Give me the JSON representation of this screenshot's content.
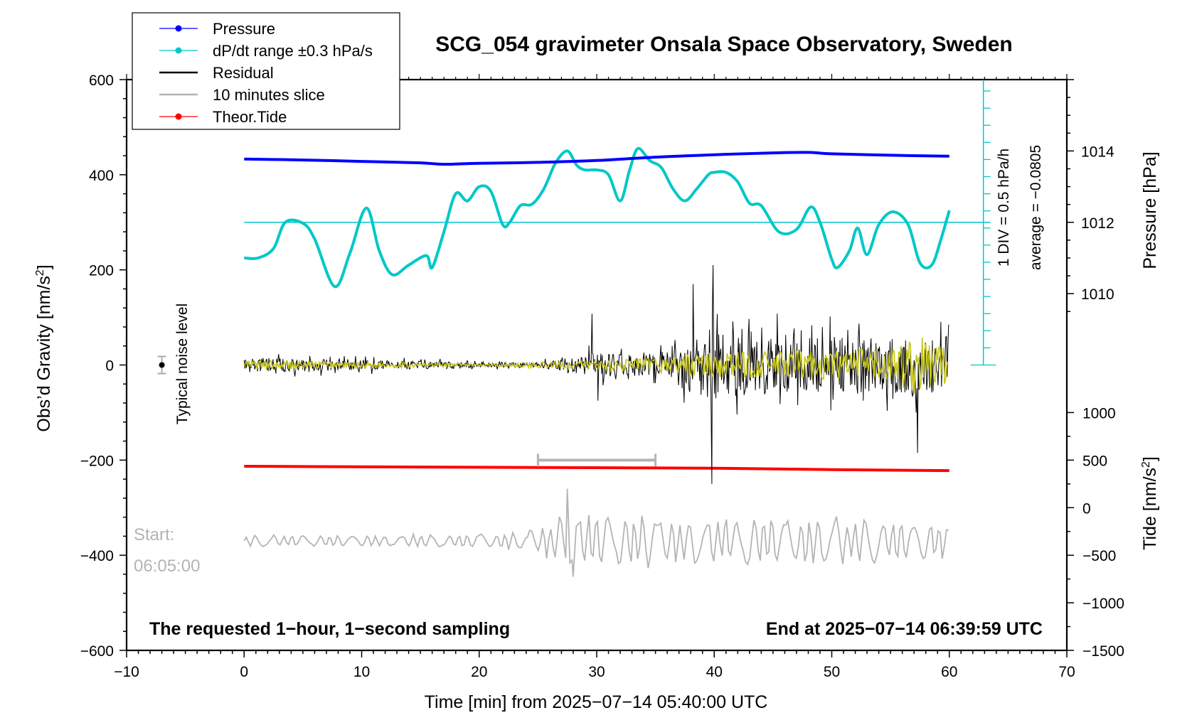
{
  "chart_data": {
    "type": "line",
    "title": "SCG_054 gravimeter Onsala Space Observatory, Sweden",
    "xlabel": "Time [min] from 2025−07−14 05:40:00 UTC",
    "ylabel": "Obs’d Gravity [nm/s",
    "ylabel_sup": "2",
    "ylabel_close": "]",
    "xlim": [
      -10,
      70
    ],
    "ylim": [
      -600,
      600
    ],
    "x_ticks": [
      -10,
      0,
      10,
      20,
      30,
      40,
      50,
      60,
      70
    ],
    "x_tick_labels": [
      "−10",
      "0",
      "10",
      "20",
      "30",
      "40",
      "50",
      "60",
      "70"
    ],
    "y_ticks": [
      -600,
      -400,
      -200,
      0,
      200,
      400,
      600
    ],
    "y_tick_labels": [
      "−600",
      "−400",
      "−200",
      "0",
      "200",
      "400",
      "600"
    ],
    "pressure_axis": {
      "label": "Pressure [hPa]",
      "ticks": [
        1010,
        1012,
        1014
      ],
      "tick_labels": [
        "1010",
        "1012",
        "1014"
      ],
      "gravity_at_1010": 150,
      "gravity_per_hPa": 75
    },
    "tide_axis": {
      "label": "Tide [nm/s",
      "label_sup": "2",
      "label_close": "]",
      "ticks": [
        -1500,
        -1000,
        -500,
        0,
        500,
        1000
      ],
      "tick_labels": [
        "−1500",
        "−1000",
        "−500",
        "0",
        "500",
        "1000"
      ],
      "gravity_at_0": -300,
      "gravity_per_unit": 0.2
    },
    "dpdt_scale": {
      "label_div": "1 DIV = 0.5 hPa/h",
      "label_avg": "average = −0.0805",
      "baseline_gravity": 300,
      "ticks_min_gravity": 0,
      "ticks_max_gravity": 600,
      "ticks_step_gravity": 36,
      "x_minutes": 62.9
    },
    "noise_level": {
      "label": "Typical noise level",
      "x": -7,
      "y": 0,
      "err": 18
    },
    "slice_bar": {
      "x_start": 25,
      "x_end": 35,
      "y": -200
    },
    "slice_start_label": "Start:",
    "slice_start_time": "06:05:00",
    "footer_left": "The requested 1−hour, 1−second sampling",
    "footer_right": "End at 2025−07−14 06:39:59 UTC",
    "legend": [
      {
        "label": "Pressure",
        "color": "#0000ff",
        "marker": true
      },
      {
        "label": "dP/dt range ±0.3 hPa/s",
        "color": "#00c8c8",
        "marker": true
      },
      {
        "label": "Residual",
        "color": "#000000",
        "marker": false
      },
      {
        "label": "10 minutes slice",
        "color": "#b4b4b4",
        "marker": false
      },
      {
        "label": "Theor.Tide",
        "color": "#ff0000",
        "marker": true
      }
    ],
    "series": [
      {
        "name": "Pressure",
        "color": "#0000ff",
        "units": "nm/s^2 (plot units)",
        "x": [
          0,
          5,
          10,
          15,
          17,
          20,
          25,
          30,
          35,
          40,
          45,
          48,
          50,
          55,
          60
        ],
        "values": [
          433,
          431,
          428,
          425,
          422,
          424,
          426,
          430,
          437,
          442,
          446,
          447,
          444,
          441,
          439
        ]
      },
      {
        "name": "dP/dt",
        "color": "#00c8c8",
        "x": [
          0,
          1.2,
          2.5,
          3.5,
          5,
          6,
          7.7,
          9,
          10.4,
          11.5,
          12.6,
          14,
          15.5,
          16,
          17,
          18,
          19,
          20,
          21,
          22,
          22.6,
          23.5,
          24.5,
          25.5,
          26.5,
          27.5,
          28.3,
          29,
          30,
          31,
          32,
          32.8,
          33.5,
          34.5,
          35.5,
          36.5,
          37.5,
          38.5,
          39.5,
          40,
          41,
          42,
          43,
          44,
          45.5,
          47,
          48.2,
          49,
          50,
          50.5,
          51.5,
          52.2,
          53,
          54,
          55.2,
          56.5,
          57.5,
          58.5,
          59.3,
          60
        ],
        "values": [
          225,
          225,
          245,
          300,
          298,
          265,
          165,
          235,
          330,
          240,
          190,
          210,
          230,
          205,
          280,
          360,
          345,
          375,
          365,
          295,
          300,
          335,
          338,
          370,
          425,
          450,
          420,
          410,
          410,
          400,
          345,
          410,
          455,
          430,
          415,
          370,
          345,
          370,
          400,
          405,
          405,
          385,
          340,
          335,
          280,
          285,
          332,
          300,
          222,
          205,
          240,
          288,
          232,
          295,
          322,
          295,
          215,
          210,
          265,
          325
        ]
      },
      {
        "name": "Residual",
        "color": "#000000",
        "noise_x": [
          0,
          10,
          20,
          25,
          29.5,
          35,
          38,
          40,
          45,
          50,
          55,
          60
        ],
        "noise_amp": [
          28,
          20,
          10,
          8,
          45,
          40,
          110,
          130,
          110,
          110,
          110,
          100
        ],
        "spikes": [
          {
            "x": 39.9,
            "value": 210
          },
          {
            "x": 39.8,
            "value": -250
          },
          {
            "x": 38.2,
            "value": 170
          },
          {
            "x": 57.3,
            "value": -185
          },
          {
            "x": 29.6,
            "value": 108
          },
          {
            "x": 30.1,
            "value": -75
          }
        ]
      },
      {
        "name": "Residual (smoothed)",
        "color": "#c8c814",
        "noise_x": [
          0,
          10,
          20,
          28,
          35,
          38,
          45,
          55,
          57,
          60
        ],
        "noise_amp": [
          10,
          7,
          3,
          8,
          15,
          25,
          30,
          35,
          65,
          40
        ]
      },
      {
        "name": "10 minutes slice",
        "color": "#b4b4b4",
        "baseline": -370,
        "noise_x": [
          0,
          10,
          20,
          24,
          26,
          28,
          31,
          40,
          50,
          60
        ],
        "noise_amp": [
          12,
          12,
          15,
          18,
          40,
          60,
          55,
          50,
          50,
          40
        ],
        "spikes": [
          {
            "x": 27.5,
            "value": -260
          },
          {
            "x": 28.0,
            "value": -445
          }
        ]
      },
      {
        "name": "Theor.Tide",
        "color": "#ff0000",
        "x": [
          0,
          10,
          20,
          30,
          40,
          50,
          60
        ],
        "values": [
          -213,
          -214,
          -215,
          -216,
          -217,
          -220,
          -222
        ]
      }
    ]
  }
}
